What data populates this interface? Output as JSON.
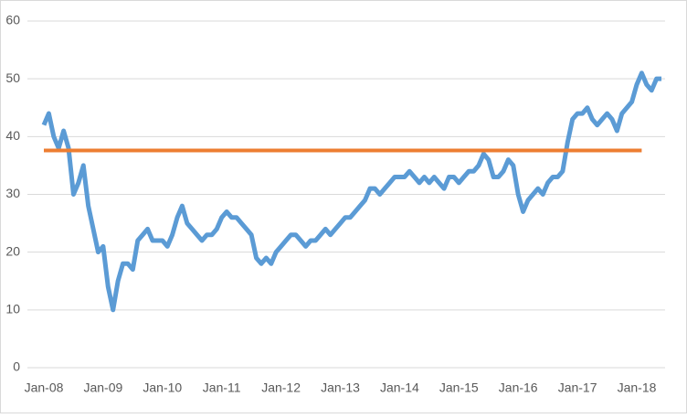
{
  "chart_data": {
    "type": "line",
    "categories": [
      "Jan-08",
      null,
      null,
      null,
      null,
      null,
      null,
      null,
      null,
      null,
      null,
      null,
      "Jan-09",
      null,
      null,
      null,
      null,
      null,
      null,
      null,
      null,
      null,
      null,
      null,
      "Jan-10",
      null,
      null,
      null,
      null,
      null,
      null,
      null,
      null,
      null,
      null,
      null,
      "Jan-11",
      null,
      null,
      null,
      null,
      null,
      null,
      null,
      null,
      null,
      null,
      null,
      "Jan-12",
      null,
      null,
      null,
      null,
      null,
      null,
      null,
      null,
      null,
      null,
      null,
      "Jan-13",
      null,
      null,
      null,
      null,
      null,
      null,
      null,
      null,
      null,
      null,
      null,
      "Jan-14",
      null,
      null,
      null,
      null,
      null,
      null,
      null,
      null,
      null,
      null,
      null,
      "Jan-15",
      null,
      null,
      null,
      null,
      null,
      null,
      null,
      null,
      null,
      null,
      null,
      "Jan-16",
      null,
      null,
      null,
      null,
      null,
      null,
      null,
      null,
      null,
      null,
      null,
      "Jan-17",
      null,
      null,
      null,
      null,
      null,
      null,
      null,
      null,
      null,
      null,
      null,
      "Jan-18",
      null,
      null,
      null,
      null,
      null
    ],
    "series": [
      {
        "color": "#5b9bd5",
        "values": [
          42,
          44,
          40,
          38,
          41,
          38,
          30,
          32,
          35,
          28,
          24,
          20,
          21,
          14,
          10,
          15,
          18,
          18,
          17,
          22,
          23,
          24,
          22,
          22,
          22,
          21,
          23,
          26,
          28,
          25,
          24,
          23,
          22,
          23,
          23,
          24,
          26,
          27,
          26,
          26,
          25,
          24,
          23,
          19,
          18,
          19,
          18,
          20,
          21,
          22,
          23,
          23,
          22,
          21,
          22,
          22,
          23,
          24,
          23,
          24,
          25,
          26,
          26,
          27,
          28,
          29,
          31,
          31,
          30,
          31,
          32,
          33,
          33,
          33,
          34,
          33,
          32,
          33,
          32,
          33,
          32,
          31,
          33,
          33,
          32,
          33,
          34,
          34,
          35,
          37,
          36,
          33,
          33,
          34,
          36,
          35,
          30,
          27,
          29,
          30,
          31,
          30,
          32,
          33,
          33,
          34,
          39,
          43,
          44,
          44,
          45,
          43,
          42,
          43,
          44,
          43,
          41,
          44,
          45,
          46,
          49,
          51,
          49,
          48,
          50,
          50
        ]
      },
      {
        "color": "#ed7d31",
        "values": [
          37.6,
          37.6,
          37.6,
          37.6,
          37.6,
          37.6,
          37.6,
          37.6,
          37.6,
          37.6,
          37.6,
          37.6,
          37.6,
          37.6,
          37.6,
          37.6,
          37.6,
          37.6,
          37.6,
          37.6,
          37.6,
          37.6,
          37.6,
          37.6,
          37.6,
          37.6,
          37.6,
          37.6,
          37.6,
          37.6,
          37.6,
          37.6,
          37.6,
          37.6,
          37.6,
          37.6,
          37.6,
          37.6,
          37.6,
          37.6,
          37.6,
          37.6,
          37.6,
          37.6,
          37.6,
          37.6,
          37.6,
          37.6,
          37.6,
          37.6,
          37.6,
          37.6,
          37.6,
          37.6,
          37.6,
          37.6,
          37.6,
          37.6,
          37.6,
          37.6,
          37.6,
          37.6,
          37.6,
          37.6,
          37.6,
          37.6,
          37.6,
          37.6,
          37.6,
          37.6,
          37.6,
          37.6,
          37.6,
          37.6,
          37.6,
          37.6,
          37.6,
          37.6,
          37.6,
          37.6,
          37.6,
          37.6,
          37.6,
          37.6,
          37.6,
          37.6,
          37.6,
          37.6,
          37.6,
          37.6,
          37.6,
          37.6,
          37.6,
          37.6,
          37.6,
          37.6,
          37.6,
          37.6,
          37.6,
          37.6,
          37.6,
          37.6,
          37.6,
          37.6,
          37.6,
          37.6,
          37.6,
          37.6,
          37.6,
          37.6,
          37.6,
          37.6,
          37.6,
          37.6,
          37.6,
          37.6,
          37.6,
          37.6,
          37.6,
          37.6,
          37.6,
          37.6,
          null,
          null,
          null,
          null
        ]
      }
    ],
    "ylim": [
      0,
      60
    ],
    "yticks": [
      0,
      10,
      20,
      30,
      40,
      50,
      60
    ],
    "grid": true
  }
}
